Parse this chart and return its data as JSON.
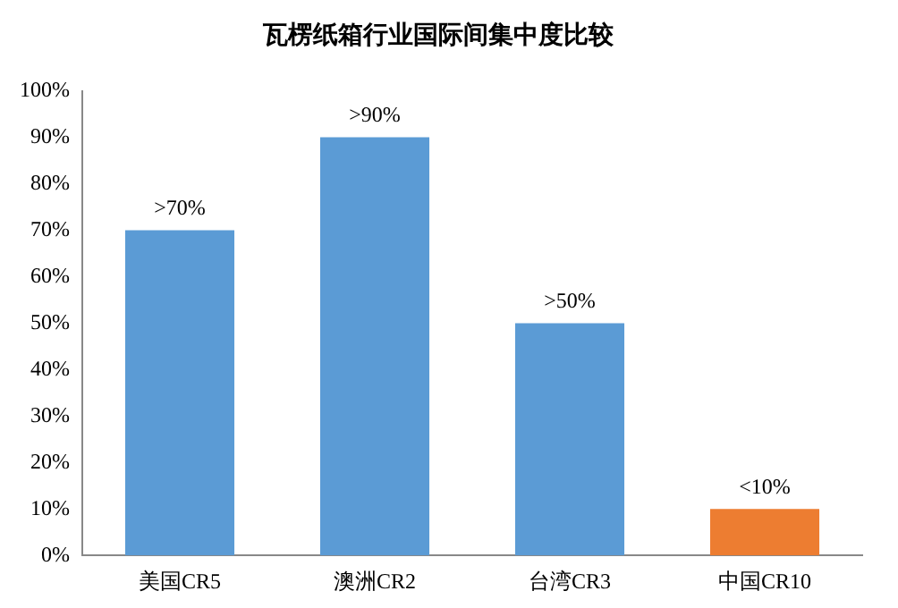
{
  "chart_data": {
    "type": "bar",
    "title": "瓦楞纸箱行业国际间集中度比较",
    "categories": [
      "美国CR5",
      "澳洲CR2",
      "台湾CR3",
      "中国CR10"
    ],
    "values": [
      70,
      90,
      50,
      10
    ],
    "colors": [
      "#5b9bd5",
      "#5b9bd5",
      "#5b9bd5",
      "#ed7d31"
    ],
    "value_labels": [
      ">70%",
      ">90%",
      ">50%",
      "<10%"
    ],
    "ylim": [
      0,
      100
    ],
    "yticks": [
      {
        "value": 0,
        "label": "0%"
      },
      {
        "value": 10,
        "label": "10%"
      },
      {
        "value": 20,
        "label": "20%"
      },
      {
        "value": 30,
        "label": "30%"
      },
      {
        "value": 40,
        "label": "40%"
      },
      {
        "value": 50,
        "label": "50%"
      },
      {
        "value": 60,
        "label": "60%"
      },
      {
        "value": 70,
        "label": "70%"
      },
      {
        "value": 80,
        "label": "80%"
      },
      {
        "value": 90,
        "label": "90%"
      },
      {
        "value": 100,
        "label": "100%"
      }
    ],
    "grid": false,
    "legend": false
  }
}
